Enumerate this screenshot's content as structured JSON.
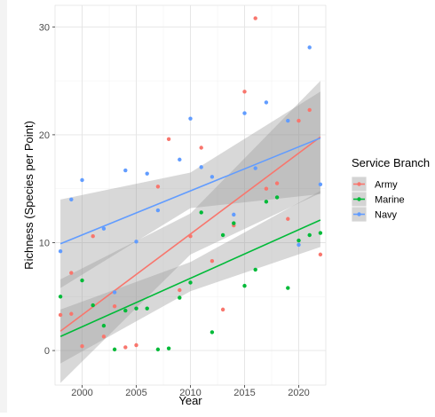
{
  "chart_data": {
    "type": "scatter",
    "xlabel": "Year",
    "ylabel": "Richness (Species per Point)",
    "xlim": [
      1997.5,
      2022.5
    ],
    "ylim": [
      -3.2,
      32.0
    ],
    "x_ticks": [
      2000,
      2005,
      2010,
      2015,
      2020
    ],
    "y_ticks": [
      0,
      10,
      20,
      30
    ],
    "grid": true,
    "legend": {
      "title": "Service Branch",
      "position": "right"
    },
    "series": [
      {
        "name": "Army",
        "color": "#F8766D",
        "points": [
          [
            1998,
            3.3
          ],
          [
            1999,
            3.4
          ],
          [
            1999,
            7.2
          ],
          [
            2000,
            0.4
          ],
          [
            2001,
            10.6
          ],
          [
            2002,
            1.3
          ],
          [
            2003,
            4.1
          ],
          [
            2004,
            0.3
          ],
          [
            2005,
            0.5
          ],
          [
            2007,
            15.2
          ],
          [
            2008,
            19.6
          ],
          [
            2009,
            5.6
          ],
          [
            2010,
            10.6
          ],
          [
            2011,
            18.8
          ],
          [
            2012,
            8.3
          ],
          [
            2013,
            3.8
          ],
          [
            2014,
            11.6
          ],
          [
            2015,
            24.0
          ],
          [
            2016,
            30.8
          ],
          [
            2017,
            15.0
          ],
          [
            2018,
            15.5
          ],
          [
            2019,
            12.2
          ],
          [
            2020,
            21.3
          ],
          [
            2021,
            22.3
          ],
          [
            2022,
            8.9
          ]
        ],
        "trend": {
          "x": [
            1998,
            2022
          ],
          "y": [
            1.8,
            19.8
          ]
        },
        "ci": {
          "x": [
            1998,
            2010,
            2022
          ],
          "lower": [
            -3.0,
            8.9,
            14.6
          ],
          "upper": [
            6.6,
            12.7,
            25.0
          ]
        }
      },
      {
        "name": "Marine",
        "color": "#00BA38",
        "points": [
          [
            1998,
            5.0
          ],
          [
            2000,
            6.5
          ],
          [
            2001,
            4.2
          ],
          [
            2002,
            2.3
          ],
          [
            2003,
            0.1
          ],
          [
            2004,
            3.7
          ],
          [
            2005,
            3.9
          ],
          [
            2006,
            3.9
          ],
          [
            2007,
            0.1
          ],
          [
            2008,
            0.2
          ],
          [
            2009,
            4.9
          ],
          [
            2010,
            6.3
          ],
          [
            2011,
            12.8
          ],
          [
            2012,
            1.7
          ],
          [
            2013,
            10.7
          ],
          [
            2014,
            11.8
          ],
          [
            2015,
            6.0
          ],
          [
            2016,
            7.5
          ],
          [
            2017,
            13.8
          ],
          [
            2018,
            14.2
          ],
          [
            2019,
            5.8
          ],
          [
            2020,
            10.2
          ],
          [
            2021,
            10.7
          ],
          [
            2022,
            10.9
          ]
        ],
        "trend": {
          "x": [
            1998,
            2022
          ],
          "y": [
            1.3,
            12.1
          ]
        },
        "ci": {
          "x": [
            1998,
            2010,
            2022
          ],
          "lower": [
            -1.2,
            5.5,
            9.6
          ],
          "upper": [
            3.8,
            8.2,
            14.8
          ]
        }
      },
      {
        "name": "Navy",
        "color": "#619CFF",
        "points": [
          [
            1998,
            9.2
          ],
          [
            1999,
            14.0
          ],
          [
            2000,
            15.8
          ],
          [
            2002,
            11.3
          ],
          [
            2003,
            5.4
          ],
          [
            2004,
            16.7
          ],
          [
            2005,
            10.1
          ],
          [
            2006,
            16.4
          ],
          [
            2007,
            13.0
          ],
          [
            2009,
            17.7
          ],
          [
            2010,
            21.5
          ],
          [
            2011,
            17.0
          ],
          [
            2012,
            16.1
          ],
          [
            2014,
            12.6
          ],
          [
            2015,
            22.0
          ],
          [
            2016,
            16.9
          ],
          [
            2017,
            23.0
          ],
          [
            2019,
            21.3
          ],
          [
            2020,
            9.8
          ],
          [
            2021,
            28.1
          ],
          [
            2022,
            15.4
          ]
        ],
        "trend": {
          "x": [
            1998,
            2022
          ],
          "y": [
            9.9,
            19.7
          ]
        },
        "ci": {
          "x": [
            1998,
            2010,
            2022
          ],
          "lower": [
            5.8,
            13.2,
            14.5
          ],
          "upper": [
            14.0,
            16.5,
            24.0
          ]
        }
      }
    ]
  }
}
